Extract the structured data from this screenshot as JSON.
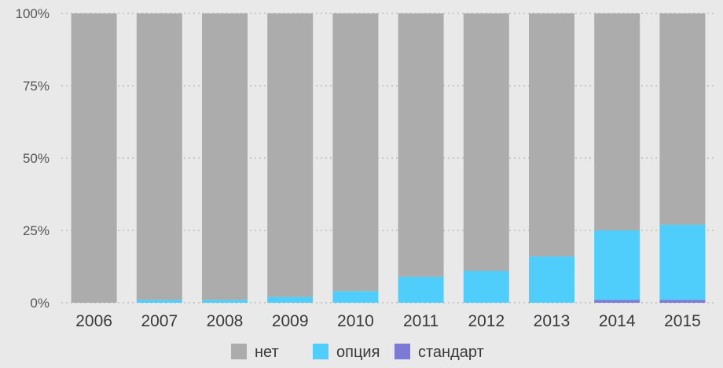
{
  "chart_data": {
    "type": "bar",
    "stacked": true,
    "percent": true,
    "categories": [
      "2006",
      "2007",
      "2008",
      "2009",
      "2010",
      "2011",
      "2012",
      "2013",
      "2014",
      "2015"
    ],
    "series": [
      {
        "name": "стандарт",
        "color": "#7b7bd6",
        "values": [
          0,
          0,
          0,
          0,
          0,
          0,
          0,
          0,
          1,
          1
        ]
      },
      {
        "name": "опция",
        "color": "#4fcdfb",
        "values": [
          0,
          1,
          1,
          2,
          4,
          9,
          11,
          16,
          24,
          26
        ]
      },
      {
        "name": "нет",
        "color": "#acacac",
        "values": [
          100,
          99,
          99,
          98,
          96,
          91,
          89,
          84,
          75,
          73
        ]
      }
    ],
    "legend_order": [
      "нет",
      "опция",
      "стандарт"
    ],
    "legend_position": "bottom",
    "ylim": [
      0,
      100
    ],
    "yticks": [
      "0%",
      "25%",
      "50%",
      "75%",
      "100%"
    ],
    "grid": true,
    "background": "#e9e9e9"
  }
}
